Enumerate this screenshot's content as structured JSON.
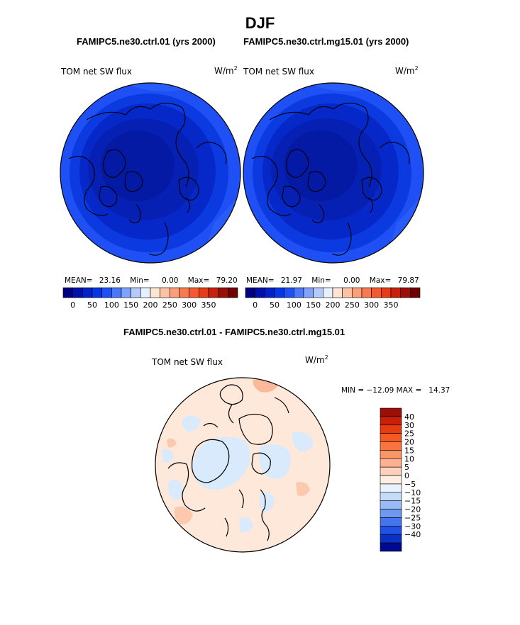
{
  "season": "DJF",
  "panels": [
    {
      "case_label": "FAMIPC5.ne30.ctrl.01 (yrs 2000)",
      "var_label": "TOM net SW flux",
      "units_base": "W/m",
      "units_exp": "2",
      "mean_label": "MEAN=",
      "mean": "23.16",
      "min_label": "Min=",
      "min": "0.00",
      "max_label": "Max=",
      "max": "79.20"
    },
    {
      "case_label": "FAMIPC5.ne30.ctrl.mg15.01 (yrs 2000)",
      "var_label": "TOM net SW flux",
      "units_base": "W/m",
      "units_exp": "2",
      "mean_label": "MEAN=",
      "mean": "21.97",
      "min_label": "Min=",
      "min": "0.00",
      "max_label": "Max=",
      "max": "79.87"
    }
  ],
  "abs_colorbar": {
    "colors": [
      "#000080",
      "#0010a8",
      "#0022c8",
      "#0636e6",
      "#1e50f5",
      "#4a78f8",
      "#7fa2fa",
      "#b4cafc",
      "#e6f0fe",
      "#fee4d2",
      "#fdc2a4",
      "#fc9e78",
      "#fa7a50",
      "#f55a2e",
      "#e83c16",
      "#c8200a",
      "#9a1006",
      "#700000"
    ],
    "ticks": [
      "0",
      "50",
      "100",
      "150",
      "200",
      "250",
      "300",
      "350"
    ]
  },
  "diff_panel": {
    "title": "FAMIPC5.ne30.ctrl.01 - FAMIPC5.ne30.ctrl.mg15.01",
    "var_label": "TOM net SW flux",
    "units_base": "W/m",
    "units_exp": "2",
    "minmax_text": "MIN = −12.09 MAX =   14.37",
    "colorbar": {
      "colors": [
        "#9a1006",
        "#c82008",
        "#e63c12",
        "#f55a22",
        "#fa7440",
        "#fb9466",
        "#fcb292",
        "#fed2ba",
        "#fdeee4",
        "#e8f2fc",
        "#c4dcf8",
        "#98baf6",
        "#6e98f2",
        "#4474ee",
        "#2050e4",
        "#0a30c4",
        "#000a90"
      ],
      "labels": [
        "40",
        "30",
        "25",
        "20",
        "15",
        "10",
        "5",
        "0",
        "−5",
        "−10",
        "−15",
        "−20",
        "−25",
        "−30",
        "−40"
      ]
    }
  }
}
